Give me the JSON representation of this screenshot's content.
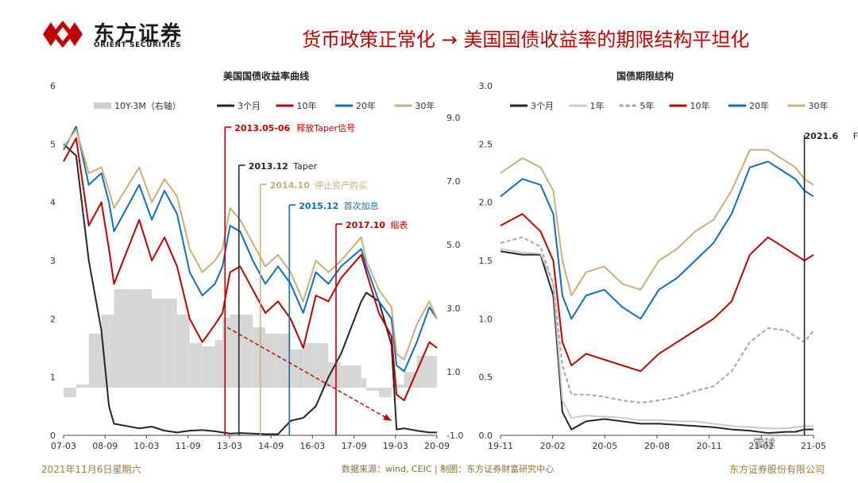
{
  "header": {
    "logo_cn": "东方证券",
    "logo_en": "ORIENT SECURITIES",
    "title": "货币政策正常化 → 美国国债收益率的期限结构平坦化"
  },
  "footer": {
    "date": "2021年11月6日星期六",
    "source": "数据来源：wind, CEIC | 制图：东方证券财富研究中心",
    "company": "东方证券股份有限公司",
    "watermark": "雪球"
  },
  "colors": {
    "3m": "#262626",
    "1y": "#c9c9c9",
    "5y": "#a6a6a6",
    "10y": "#c00000",
    "20y": "#0f6fbf",
    "30y": "#c8b07a",
    "spread": "#cfcfcf",
    "title_red": "#c00000"
  },
  "chart_data": [
    {
      "type": "line",
      "title": "美国国债收益率曲线",
      "ylim": [
        0,
        6
      ],
      "y_ticks": [
        "0",
        "1",
        "2",
        "3",
        "4",
        "5",
        "6"
      ],
      "y2lim": [
        -1.0,
        10.0
      ],
      "y2_ticks": [
        "-1.0",
        "1.0",
        "3.0",
        "5.0",
        "7.0",
        "9.0"
      ],
      "x_ticks": [
        "07-03",
        "08-09",
        "10-03",
        "11-09",
        "13-03",
        "14-09",
        "16-03",
        "17-09",
        "19-03",
        "20-09"
      ],
      "legend_position": "top",
      "legend": [
        "10Y-3M（右轴）",
        "3个月",
        "10年",
        "20年",
        "30年"
      ],
      "x": [
        2007.0,
        2007.5,
        2008.0,
        2008.5,
        2008.8,
        2009.0,
        2010.0,
        2010.5,
        2011.0,
        2011.5,
        2012.0,
        2012.5,
        2013.0,
        2013.3,
        2013.6,
        2014.0,
        2014.5,
        2015.0,
        2015.5,
        2016.0,
        2016.5,
        2017.0,
        2017.5,
        2018.0,
        2018.8,
        2019.0,
        2019.5,
        2020.0,
        2020.2,
        2020.5,
        2021.0,
        2021.5,
        2021.8
      ],
      "series": [
        {
          "name": "3个月",
          "key": "3m",
          "values": [
            5.0,
            4.8,
            3.0,
            1.8,
            0.5,
            0.2,
            0.12,
            0.15,
            0.08,
            0.05,
            0.08,
            0.09,
            0.07,
            0.05,
            0.03,
            0.04,
            0.03,
            0.02,
            0.02,
            0.25,
            0.3,
            0.5,
            1.0,
            1.4,
            2.3,
            2.45,
            2.3,
            1.55,
            0.1,
            0.12,
            0.08,
            0.05,
            0.05
          ]
        },
        {
          "name": "10年",
          "key": "10y",
          "values": [
            4.7,
            5.1,
            3.6,
            4.0,
            3.2,
            2.6,
            3.7,
            3.0,
            3.4,
            2.9,
            2.0,
            1.6,
            1.9,
            2.1,
            2.8,
            2.9,
            2.5,
            2.1,
            2.3,
            2.0,
            1.5,
            2.4,
            2.3,
            2.7,
            3.1,
            2.8,
            2.1,
            1.7,
            0.7,
            0.6,
            1.1,
            1.6,
            1.5
          ]
        },
        {
          "name": "20年",
          "key": "20y",
          "values": [
            4.9,
            5.3,
            4.3,
            4.5,
            4.0,
            3.5,
            4.3,
            3.7,
            4.2,
            3.8,
            2.8,
            2.4,
            2.6,
            2.9,
            3.6,
            3.5,
            3.0,
            2.6,
            2.9,
            2.6,
            2.1,
            2.8,
            2.6,
            2.9,
            3.2,
            2.9,
            2.3,
            2.0,
            1.2,
            1.1,
            1.6,
            2.2,
            2.0
          ]
        },
        {
          "name": "30年",
          "key": "30y",
          "values": [
            4.95,
            5.25,
            4.5,
            4.6,
            4.2,
            3.9,
            4.6,
            4.0,
            4.4,
            4.1,
            3.2,
            2.8,
            3.0,
            3.2,
            3.9,
            3.7,
            3.3,
            2.9,
            3.1,
            2.8,
            2.3,
            3.0,
            2.8,
            3.0,
            3.4,
            3.0,
            2.5,
            2.2,
            1.4,
            1.3,
            1.9,
            2.3,
            2.0
          ]
        },
        {
          "name": "10Y-3M（右轴）",
          "key": "spread",
          "axis": "right",
          "values": [
            -0.3,
            0.2,
            0.6,
            2.2,
            2.8,
            2.4,
            3.6,
            2.8,
            3.3,
            2.8,
            1.9,
            1.5,
            1.8,
            2.0,
            2.7,
            2.8,
            2.4,
            2.0,
            2.2,
            1.7,
            1.2,
            1.9,
            1.3,
            1.2,
            0.8,
            0.4,
            -0.2,
            0.2,
            0.6,
            0.5,
            1.0,
            1.5,
            1.4
          ]
        }
      ],
      "annotations": [
        {
          "date": "2013.05-06",
          "label": "释放Taper信号",
          "color": "#c00000",
          "x": 2013.4
        },
        {
          "date": "2013.12",
          "label": "Taper",
          "color": "#262626",
          "x": 2013.95
        },
        {
          "date": "2014.10",
          "label": "停止资产购买",
          "color": "#c8b07a",
          "x": 2014.8
        },
        {
          "date": "2015.12",
          "label": "首次加息",
          "color": "#0f6fbf",
          "x": 2015.95
        },
        {
          "date": "2017.10",
          "label": "缩表",
          "color": "#c00000",
          "x": 2017.8
        }
      ],
      "trend_arrow": {
        "from": [
          2013.5,
          1.85
        ],
        "to": [
          2020.0,
          0.25
        ]
      }
    },
    {
      "type": "line",
      "title": "国债期限结构",
      "ylim": [
        0,
        3.0
      ],
      "y_ticks": [
        "0.0",
        "0.5",
        "1.0",
        "1.5",
        "2.0",
        "2.5",
        "3.0"
      ],
      "x_ticks": [
        "19-11",
        "20-02",
        "20-05",
        "20-08",
        "20-11",
        "21-02",
        "21-05"
      ],
      "legend_position": "top",
      "legend": [
        "3个月",
        "1年",
        "5年",
        "10年",
        "20年",
        "30年"
      ],
      "x": [
        2019.83,
        2019.95,
        2020.05,
        2020.12,
        2020.17,
        2020.22,
        2020.3,
        2020.4,
        2020.5,
        2020.6,
        2020.7,
        2020.8,
        2020.9,
        2021.0,
        2021.1,
        2021.2,
        2021.3,
        2021.4,
        2021.45,
        2021.5,
        2021.55
      ],
      "series": [
        {
          "name": "3个月",
          "key": "3m",
          "values": [
            1.58,
            1.55,
            1.55,
            1.2,
            0.2,
            0.05,
            0.12,
            0.14,
            0.12,
            0.1,
            0.1,
            0.09,
            0.08,
            0.07,
            0.05,
            0.04,
            0.02,
            0.03,
            0.03,
            0.05,
            0.05
          ]
        },
        {
          "name": "1年",
          "key": "1y",
          "values": [
            1.6,
            1.57,
            1.56,
            1.3,
            0.3,
            0.15,
            0.17,
            0.16,
            0.15,
            0.13,
            0.13,
            0.12,
            0.12,
            0.1,
            0.08,
            0.07,
            0.06,
            0.06,
            0.07,
            0.08,
            0.08
          ]
        },
        {
          "name": "5年",
          "key": "5y",
          "values": [
            1.65,
            1.7,
            1.62,
            1.3,
            0.6,
            0.35,
            0.35,
            0.33,
            0.3,
            0.28,
            0.3,
            0.33,
            0.38,
            0.42,
            0.55,
            0.8,
            0.92,
            0.9,
            0.85,
            0.8,
            0.9
          ]
        },
        {
          "name": "10年",
          "key": "10y",
          "values": [
            1.8,
            1.9,
            1.75,
            1.5,
            0.8,
            0.6,
            0.7,
            0.65,
            0.6,
            0.55,
            0.7,
            0.8,
            0.9,
            1.0,
            1.15,
            1.55,
            1.7,
            1.6,
            1.55,
            1.5,
            1.55
          ]
        },
        {
          "name": "20年",
          "key": "20y",
          "values": [
            2.05,
            2.2,
            2.15,
            1.9,
            1.2,
            1.0,
            1.2,
            1.25,
            1.1,
            1.0,
            1.25,
            1.35,
            1.5,
            1.65,
            1.9,
            2.3,
            2.35,
            2.25,
            2.2,
            2.1,
            2.05
          ]
        },
        {
          "name": "30年",
          "key": "30y",
          "values": [
            2.25,
            2.38,
            2.3,
            2.1,
            1.5,
            1.2,
            1.4,
            1.45,
            1.3,
            1.25,
            1.5,
            1.6,
            1.75,
            1.85,
            2.1,
            2.45,
            2.45,
            2.35,
            2.3,
            2.2,
            2.15
          ]
        }
      ],
      "annotations": [
        {
          "date": "2021.6",
          "label": "FOMC会议",
          "color": "#262626",
          "x": 2021.5
        }
      ]
    }
  ]
}
